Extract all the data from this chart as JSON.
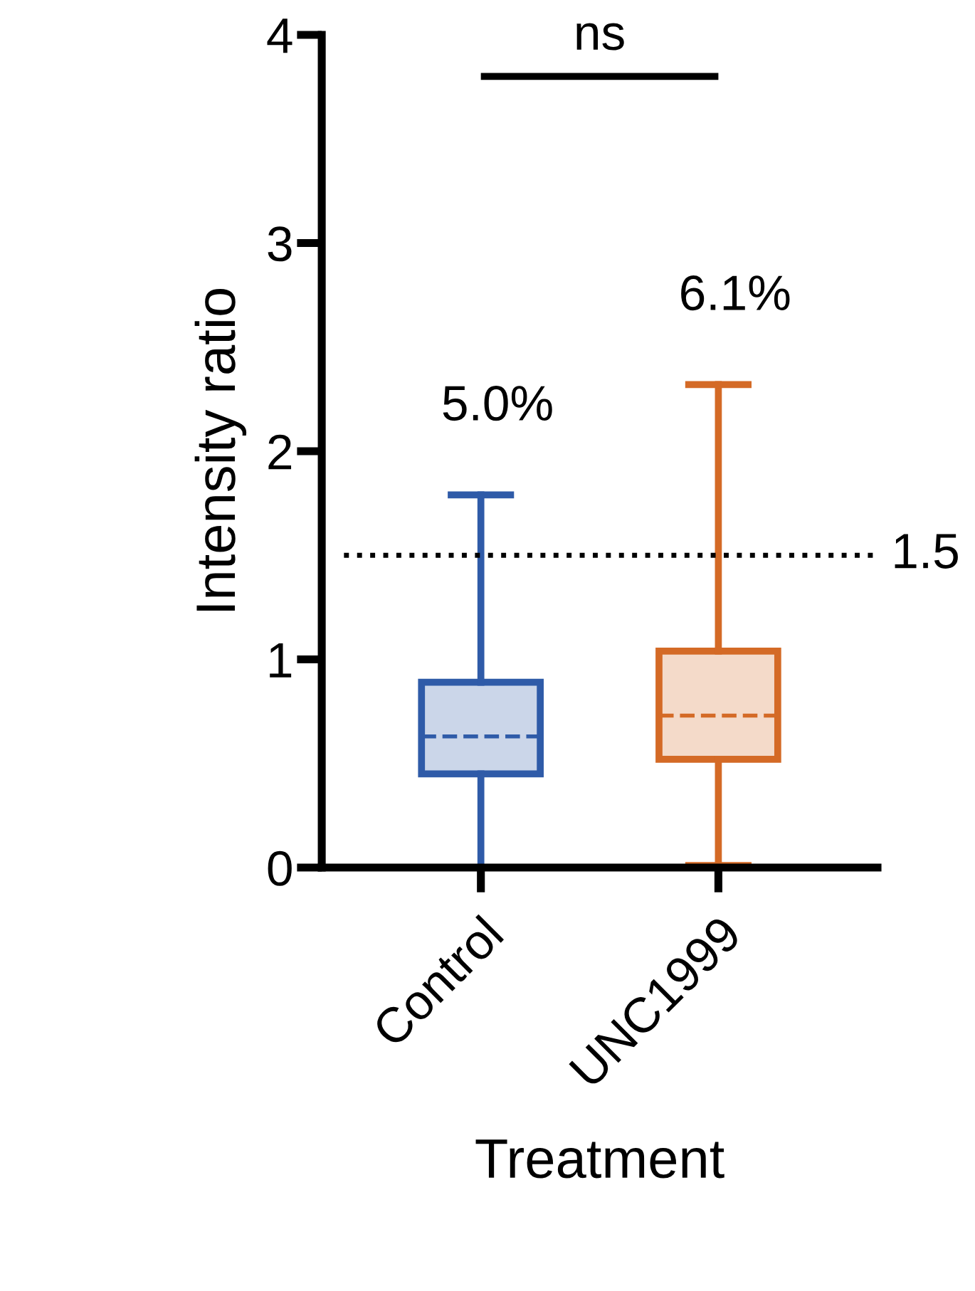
{
  "chart_data": {
    "type": "box",
    "ylabel": "Intensity ratio",
    "xlabel": "Treatment",
    "categories": [
      "Control",
      "UNC1999"
    ],
    "colors": [
      "#2f5ba8",
      "#d46a26"
    ],
    "boxes": [
      {
        "low": 0.0,
        "q1": 0.45,
        "median": 0.63,
        "q3": 0.89,
        "high": 1.79
      },
      {
        "low": 0.01,
        "q1": 0.52,
        "median": 0.73,
        "q3": 1.04,
        "high": 2.32
      }
    ],
    "ylim": [
      0,
      4
    ],
    "yticks": [
      0,
      1,
      2,
      3,
      4
    ],
    "ref_lines": [
      {
        "axis": "y",
        "value": 1.5,
        "label": "1.5",
        "color": "#000000",
        "line_style": "dotted"
      }
    ],
    "annotations": [
      "5.0%",
      "6.1%",
      "ns"
    ],
    "grid": false
  }
}
